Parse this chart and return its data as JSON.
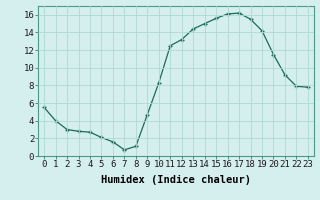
{
  "x": [
    0,
    1,
    2,
    3,
    4,
    5,
    6,
    7,
    8,
    9,
    10,
    11,
    12,
    13,
    14,
    15,
    16,
    17,
    18,
    19,
    20,
    21,
    22,
    23
  ],
  "y": [
    5.5,
    4.0,
    3.0,
    2.8,
    2.7,
    2.1,
    1.6,
    0.7,
    1.1,
    4.7,
    8.3,
    12.5,
    13.2,
    14.4,
    15.0,
    15.6,
    16.1,
    16.2,
    15.5,
    14.2,
    11.5,
    9.2,
    7.9,
    7.8
  ],
  "line_color": "#1a6b5a",
  "marker": "+",
  "marker_size": 3,
  "bg_color": "#d5efee",
  "grid_color": "#b0d8d5",
  "xlabel": "Humidex (Indice chaleur)",
  "xlim": [
    -0.5,
    23.5
  ],
  "ylim": [
    0,
    17
  ],
  "yticks": [
    0,
    2,
    4,
    6,
    8,
    10,
    12,
    14,
    16
  ],
  "xticks": [
    0,
    1,
    2,
    3,
    4,
    5,
    6,
    7,
    8,
    9,
    10,
    11,
    12,
    13,
    14,
    15,
    16,
    17,
    18,
    19,
    20,
    21,
    22,
    23
  ],
  "tick_fontsize": 6.5,
  "label_fontsize": 7.5
}
